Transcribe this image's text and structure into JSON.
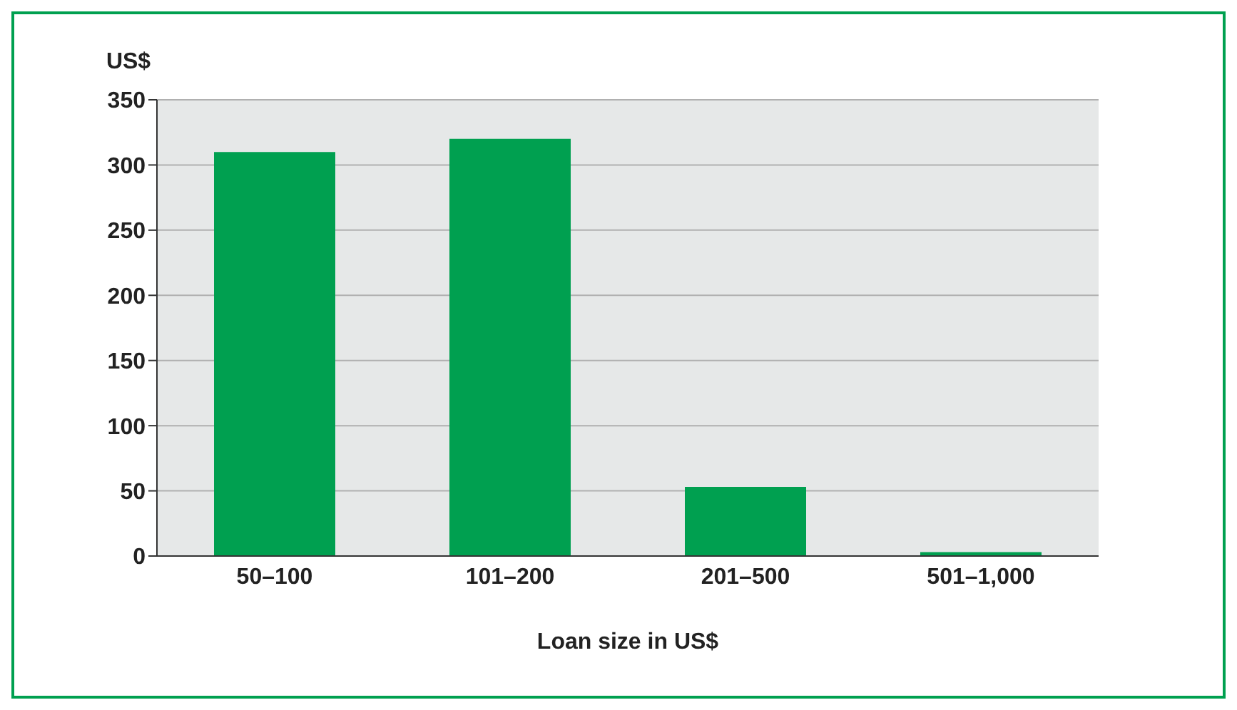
{
  "chart_data": {
    "type": "bar",
    "ylabel": "US$",
    "xlabel": "Loan size in US$",
    "categories": [
      "50–100",
      "101–200",
      "201–500",
      "501–1,000"
    ],
    "values": [
      310,
      320,
      53,
      3
    ],
    "color": "#00a050",
    "ylim": [
      0,
      350
    ],
    "yticks": [
      0,
      50,
      100,
      150,
      200,
      250,
      300,
      350
    ],
    "grid": "y"
  }
}
